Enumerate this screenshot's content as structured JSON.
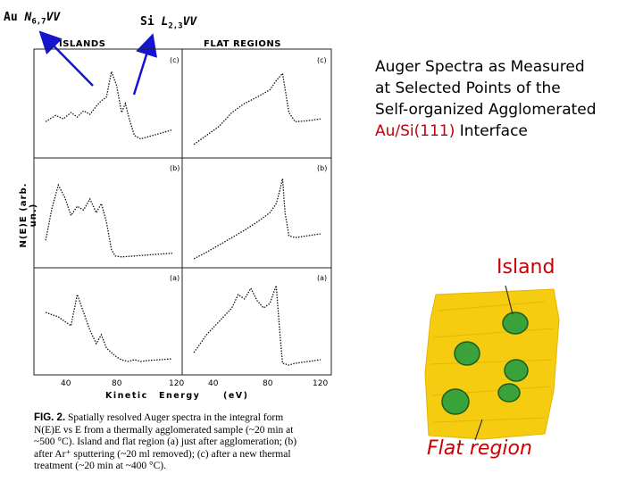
{
  "annotations": {
    "au": {
      "el": "Au",
      "line": "N",
      "sub": "6,7",
      "rest": "VV"
    },
    "si": {
      "el": "Si",
      "line": "L",
      "sub": "2,3",
      "rest": "VV"
    }
  },
  "figure": {
    "column_titles": [
      "ISLANDS",
      "FLAT REGIONS"
    ],
    "panel_labels": [
      "(c)",
      "(b)",
      "(a)"
    ],
    "ylabel": "N(E)E  (arb. un.)",
    "x_ticks": [
      "40",
      "80",
      "120"
    ],
    "xlabel": [
      "Kinetic",
      "Energy",
      "(eV)"
    ]
  },
  "caption": {
    "fig_label": "FIG. 2.",
    "lines": [
      "Spatially resolved Auger spectra in the integral form",
      "N(E)E vs E from a thermally agglomerated sample (~20 min at",
      "~500 °C). Island and flat region (a) just after agglomeration; (b)",
      "after Ar⁺ sputtering (~20 ml removed); (c) after a new thermal",
      "treatment (~20 min at ~400 °C)."
    ]
  },
  "title": {
    "lines": [
      "Auger Spectra as Measured",
      "at Selected Points of the",
      "Self-organized Agglomerated"
    ],
    "last_red": "Au/Si(111)",
    "last_rest": " Interface"
  },
  "labels": {
    "island": "Island",
    "flat": "Flat region"
  },
  "colors": {
    "arrow": "#1515d0",
    "label_red": "#cc0000",
    "yellow": "#f5c800",
    "green": "#3aa23a"
  },
  "chart_data": [
    {
      "type": "line",
      "panel": "islands (c)",
      "xlabel": "Kinetic Energy (eV)",
      "ylabel": "N(E)E (arb. un.)",
      "x_ticks": [
        40,
        80,
        120
      ],
      "series": [
        {
          "x": [
            20,
            28,
            34,
            40,
            45,
            50,
            55,
            60,
            64,
            68,
            72,
            76,
            80,
            83,
            86,
            90,
            95,
            100,
            110,
            120
          ],
          "y": [
            0.35,
            0.42,
            0.38,
            0.45,
            0.4,
            0.47,
            0.43,
            0.52,
            0.58,
            0.62,
            0.9,
            0.75,
            0.45,
            0.55,
            0.38,
            0.2,
            0.16,
            0.18,
            0.22,
            0.26
          ]
        }
      ]
    },
    {
      "type": "line",
      "panel": "flat regions (c)",
      "x_ticks": [
        40,
        80,
        120
      ],
      "series": [
        {
          "x": [
            20,
            30,
            40,
            50,
            60,
            70,
            80,
            85,
            90,
            95,
            100,
            110,
            120
          ],
          "y": [
            0.1,
            0.2,
            0.3,
            0.45,
            0.55,
            0.62,
            0.7,
            0.8,
            0.88,
            0.45,
            0.35,
            0.36,
            0.38
          ]
        }
      ]
    },
    {
      "type": "line",
      "panel": "islands (b)",
      "x_ticks": [
        40,
        80,
        120
      ],
      "series": [
        {
          "x": [
            20,
            25,
            30,
            35,
            40,
            45,
            50,
            55,
            60,
            64,
            68,
            72,
            75,
            80,
            90,
            100,
            110,
            120
          ],
          "y": [
            0.25,
            0.6,
            0.85,
            0.72,
            0.52,
            0.62,
            0.58,
            0.7,
            0.55,
            0.65,
            0.45,
            0.15,
            0.08,
            0.07,
            0.08,
            0.09,
            0.1,
            0.11
          ]
        }
      ]
    },
    {
      "type": "line",
      "panel": "flat regions (b)",
      "x_ticks": [
        40,
        80,
        120
      ],
      "series": [
        {
          "x": [
            20,
            30,
            40,
            50,
            60,
            70,
            80,
            85,
            88,
            90,
            92,
            95,
            100,
            110,
            120
          ],
          "y": [
            0.05,
            0.12,
            0.2,
            0.28,
            0.36,
            0.45,
            0.55,
            0.65,
            0.8,
            0.92,
            0.55,
            0.3,
            0.28,
            0.3,
            0.32
          ]
        }
      ]
    },
    {
      "type": "line",
      "panel": "islands (a)",
      "x_ticks": [
        40,
        80,
        120
      ],
      "series": [
        {
          "x": [
            20,
            30,
            40,
            45,
            50,
            55,
            60,
            64,
            68,
            72,
            76,
            80,
            85,
            90,
            95,
            100,
            110,
            120
          ],
          "y": [
            0.65,
            0.6,
            0.5,
            0.85,
            0.65,
            0.45,
            0.3,
            0.4,
            0.25,
            0.2,
            0.15,
            0.12,
            0.1,
            0.12,
            0.1,
            0.11,
            0.12,
            0.13
          ]
        }
      ]
    },
    {
      "type": "line",
      "panel": "flat regions (a)",
      "x_ticks": [
        40,
        80,
        120
      ],
      "series": [
        {
          "x": [
            20,
            30,
            40,
            50,
            55,
            60,
            65,
            70,
            75,
            80,
            85,
            88,
            90,
            95,
            100,
            110,
            120
          ],
          "y": [
            0.2,
            0.4,
            0.55,
            0.7,
            0.85,
            0.8,
            0.92,
            0.78,
            0.7,
            0.75,
            0.95,
            0.4,
            0.08,
            0.06,
            0.08,
            0.1,
            0.12
          ]
        }
      ]
    }
  ]
}
